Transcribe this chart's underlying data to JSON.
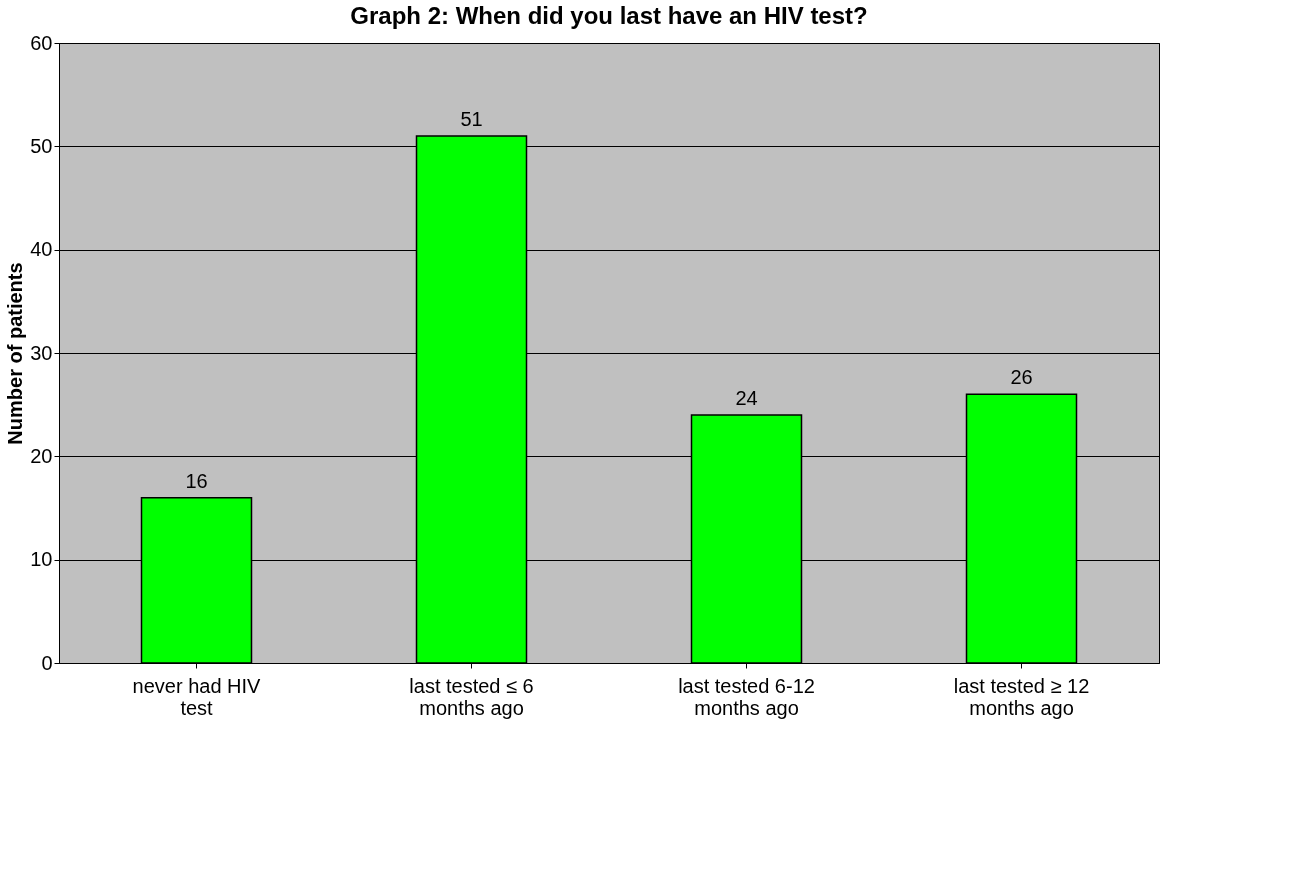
{
  "chart_data": {
    "type": "bar",
    "title": "Graph 2: When did you last have an HIV test?",
    "ylabel": "Number of patients",
    "categories": [
      "never had HIV\ntest",
      "last tested ≤ 6\nmonths ago",
      "last tested 6-12\nmonths ago",
      "last tested ≥ 12\nmonths ago"
    ],
    "values": [
      16,
      51,
      24,
      26
    ],
    "color": "#00ff00",
    "ylim": [
      0,
      60
    ],
    "yticks": [
      0,
      10,
      20,
      30,
      40,
      50,
      60
    ],
    "grid": "y",
    "data_labels": true
  }
}
